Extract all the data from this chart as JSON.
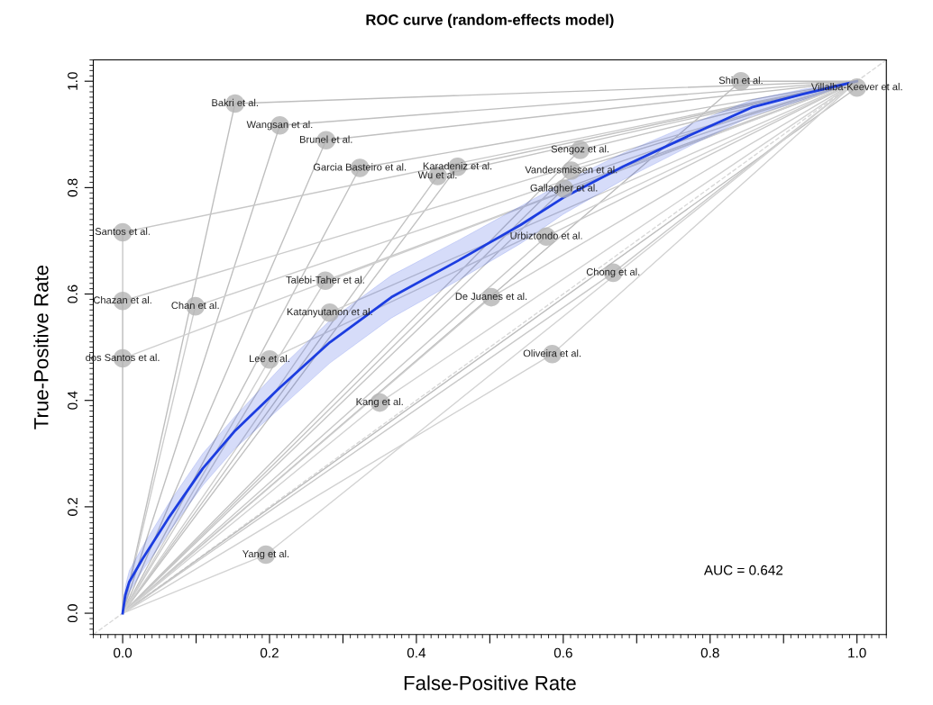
{
  "chart_data": {
    "type": "line",
    "title": "ROC curve (random-effects model)",
    "xlabel": "False-Positive Rate",
    "ylabel": "True-Positive Rate",
    "xlim": [
      -0.04,
      1.04
    ],
    "ylim": [
      -0.04,
      1.04
    ],
    "xticks": [
      {
        "value": 0,
        "label": "0.0"
      },
      {
        "value": 0.1,
        "label": null
      },
      {
        "value": 0.2,
        "label": "0.2"
      },
      {
        "value": 0.3,
        "label": null
      },
      {
        "value": 0.4,
        "label": "0.4"
      },
      {
        "value": 0.5,
        "label": null
      },
      {
        "value": 0.6,
        "label": "0.6"
      },
      {
        "value": 0.7,
        "label": null
      },
      {
        "value": 0.8,
        "label": "0.8"
      },
      {
        "value": 0.9,
        "label": null
      },
      {
        "value": 1,
        "label": "1.0"
      }
    ],
    "yticks": [
      {
        "value": 0,
        "label": "0.0"
      },
      {
        "value": 0.2,
        "label": "0.2"
      },
      {
        "value": 0.4,
        "label": "0.4"
      },
      {
        "value": 0.6,
        "label": "0.6"
      },
      {
        "value": 0.8,
        "label": "0.8"
      },
      {
        "value": 1,
        "label": "1.0"
      }
    ],
    "grid": false,
    "legend": false,
    "series": [
      {
        "line_style": "dashed",
        "color": "#d8d8d8",
        "x": [
          -0.04,
          1.04
        ],
        "values": [
          -0.04,
          1.04
        ]
      },
      {
        "color": "#bcbcbc",
        "x": [
          0,
          0.842,
          1
        ],
        "values": [
          0,
          1.0,
          1
        ]
      },
      {
        "color": "#bdbdbd",
        "x": [
          0,
          1.0,
          1
        ],
        "values": [
          0,
          0.988,
          1
        ]
      },
      {
        "color": "#bebebe",
        "x": [
          0,
          0.153,
          1
        ],
        "values": [
          0,
          0.958,
          1
        ]
      },
      {
        "color": "#bfbfbf",
        "x": [
          0,
          0.214,
          1
        ],
        "values": [
          0,
          0.917,
          1
        ]
      },
      {
        "color": "#c0c0c0",
        "x": [
          0,
          0.277,
          1
        ],
        "values": [
          0,
          0.889,
          1
        ]
      },
      {
        "color": "#c1c1c1",
        "x": [
          0,
          0.323,
          1
        ],
        "values": [
          0,
          0.837,
          1
        ]
      },
      {
        "color": "#c2c2c2",
        "x": [
          0,
          0.456,
          1
        ],
        "values": [
          0,
          0.839,
          1
        ]
      },
      {
        "color": "#c3c3c3",
        "x": [
          0,
          0.429,
          1
        ],
        "values": [
          0,
          0.822,
          1
        ]
      },
      {
        "color": "#c4c4c4",
        "x": [
          0,
          0.623,
          1
        ],
        "values": [
          0,
          0.871,
          1
        ]
      },
      {
        "color": "#c5c5c5",
        "x": [
          0,
          0.611,
          1
        ],
        "values": [
          0,
          0.832,
          1
        ]
      },
      {
        "color": "#c6c6c6",
        "x": [
          0,
          0.601,
          1
        ],
        "values": [
          0,
          0.798,
          1
        ]
      },
      {
        "color": "#c7c7c7",
        "x": [
          0,
          0.0,
          1
        ],
        "values": [
          0,
          0.716,
          1
        ]
      },
      {
        "color": "#c8c8c8",
        "x": [
          0,
          0.577,
          1
        ],
        "values": [
          0,
          0.708,
          1
        ]
      },
      {
        "color": "#c9c9c9",
        "x": [
          0,
          0.668,
          1
        ],
        "values": [
          0,
          0.64,
          1
        ]
      },
      {
        "color": "#cacaca",
        "x": [
          0,
          0.276,
          1
        ],
        "values": [
          0,
          0.625,
          1
        ]
      },
      {
        "color": "#cbcbcb",
        "x": [
          0,
          0.0,
          1
        ],
        "values": [
          0,
          0.587,
          1
        ]
      },
      {
        "color": "#cccccc",
        "x": [
          0,
          0.099,
          1
        ],
        "values": [
          0,
          0.577,
          1
        ]
      },
      {
        "color": "#cdcdcd",
        "x": [
          0,
          0.502,
          1
        ],
        "values": [
          0,
          0.594,
          1
        ]
      },
      {
        "color": "#cecece",
        "x": [
          0,
          0.282,
          1
        ],
        "values": [
          0,
          0.565,
          1
        ]
      },
      {
        "color": "#cfcfcf",
        "x": [
          0,
          0.0,
          1
        ],
        "values": [
          0,
          0.479,
          1
        ]
      },
      {
        "color": "#d0d0d0",
        "x": [
          0,
          0.2,
          1
        ],
        "values": [
          0,
          0.477,
          1
        ]
      },
      {
        "color": "#d1d1d1",
        "x": [
          0,
          0.585,
          1
        ],
        "values": [
          0,
          0.487,
          1
        ]
      },
      {
        "color": "#d2d2d2",
        "x": [
          0,
          0.35,
          1
        ],
        "values": [
          0,
          0.396,
          1
        ]
      },
      {
        "color": "#d3d3d3",
        "x": [
          0,
          0.195,
          1
        ],
        "values": [
          0,
          0.11,
          1
        ]
      },
      {
        "color": "#1c3de0",
        "x": [
          0,
          0.0035,
          0.009,
          0.027,
          0.062,
          0.109,
          0.153,
          0.214,
          0.282,
          0.366,
          0.456,
          0.542,
          0.6,
          0.682,
          0.775,
          0.857,
          0.927,
          1.0
        ],
        "values": [
          0,
          0.034,
          0.059,
          0.102,
          0.178,
          0.272,
          0.343,
          0.424,
          0.509,
          0.594,
          0.662,
          0.73,
          0.781,
          0.84,
          0.9,
          0.951,
          0.976,
          1.0
        ],
        "lower": [
          0,
          0.02,
          0.04,
          0.08,
          0.15,
          0.24,
          0.31,
          0.385,
          0.47,
          0.555,
          0.625,
          0.695,
          0.75,
          0.815,
          0.88,
          0.935,
          0.965,
          1.0
        ],
        "upper": [
          0,
          0.05,
          0.08,
          0.125,
          0.205,
          0.3,
          0.37,
          0.46,
          0.55,
          0.635,
          0.7,
          0.765,
          0.81,
          0.865,
          0.92,
          0.965,
          0.985,
          1.0
        ]
      },
      {
        "type": "scatter",
        "marker": "circle",
        "color": "#b4b4b4",
        "x": [
          0.842,
          1.0,
          0.153,
          0.214,
          0.277,
          0.323,
          0.456,
          0.429,
          0.623,
          0.611,
          0.601,
          0.0,
          0.577,
          0.668,
          0.276,
          0.0,
          0.099,
          0.502,
          0.282,
          0.0,
          0.2,
          0.585,
          0.35,
          0.195
        ],
        "values": [
          1.0,
          0.988,
          0.958,
          0.917,
          0.889,
          0.837,
          0.839,
          0.822,
          0.871,
          0.832,
          0.798,
          0.716,
          0.708,
          0.64,
          0.625,
          0.587,
          0.577,
          0.594,
          0.565,
          0.479,
          0.477,
          0.487,
          0.396,
          0.11
        ]
      }
    ],
    "annotations": [
      {
        "text": "Shin et al.",
        "x": 0.842,
        "y": 1.0
      },
      {
        "text": "Villalba-Keever et al.",
        "x": 1.0,
        "y": 0.988
      },
      {
        "text": "Bakri et al.",
        "x": 0.153,
        "y": 0.958
      },
      {
        "text": "Wangsan et al.",
        "x": 0.214,
        "y": 0.917
      },
      {
        "text": "Brunel et al.",
        "x": 0.277,
        "y": 0.889
      },
      {
        "text": "Garcia Basteiro et al.",
        "x": 0.323,
        "y": 0.837
      },
      {
        "text": "Karadeniz et al.",
        "x": 0.456,
        "y": 0.839
      },
      {
        "text": "Wu et al.",
        "x": 0.429,
        "y": 0.822
      },
      {
        "text": "Sengoz et al.",
        "x": 0.623,
        "y": 0.871
      },
      {
        "text": "Vandersmissen et al.",
        "x": 0.611,
        "y": 0.832
      },
      {
        "text": "Gallagher et al.",
        "x": 0.601,
        "y": 0.798
      },
      {
        "text": "Santos et al.",
        "x": 0.0,
        "y": 0.716
      },
      {
        "text": "Urbiztondo et al.",
        "x": 0.577,
        "y": 0.708
      },
      {
        "text": "Chong et al.",
        "x": 0.668,
        "y": 0.64
      },
      {
        "text": "Talebi-Taher et al.",
        "x": 0.276,
        "y": 0.625
      },
      {
        "text": "Chazan et al.",
        "x": 0.0,
        "y": 0.587
      },
      {
        "text": "Chan et al.",
        "x": 0.099,
        "y": 0.577
      },
      {
        "text": "De Juanes et al.",
        "x": 0.502,
        "y": 0.594
      },
      {
        "text": "Katanyutanon et al.",
        "x": 0.282,
        "y": 0.565
      },
      {
        "text": "dos Santos et al.",
        "x": 0.0,
        "y": 0.479
      },
      {
        "text": "Lee et al.",
        "x": 0.2,
        "y": 0.477
      },
      {
        "text": "Oliveira et al.",
        "x": 0.585,
        "y": 0.487
      },
      {
        "text": "Kang et al.",
        "x": 0.35,
        "y": 0.396
      },
      {
        "text": "Yang et al.",
        "x": 0.195,
        "y": 0.11
      },
      "AUC = 0.642"
    ]
  }
}
